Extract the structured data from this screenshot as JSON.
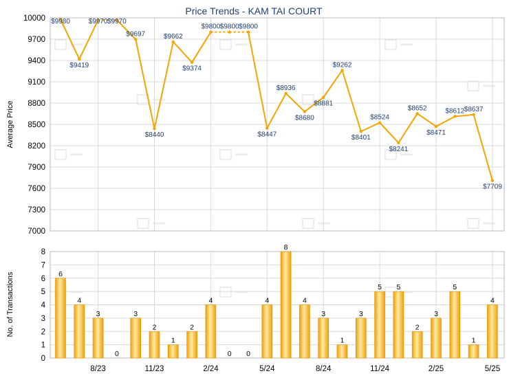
{
  "chart_data": [
    {
      "type": "line",
      "title": "Price Trends - KAM TAI COURT",
      "ylabel": "Average Price",
      "ylim": [
        7000,
        10000
      ],
      "yticks": [
        7000,
        7300,
        7600,
        7900,
        8200,
        8500,
        8800,
        9100,
        9400,
        9700,
        10000
      ],
      "grid": true,
      "line_color": "#f5a400",
      "points": [
        {
          "x": "2023-06",
          "y": 9980,
          "label": "$9980"
        },
        {
          "x": "2023-07",
          "y": 9419,
          "label": "$9419"
        },
        {
          "x": "2023-08",
          "y": 9970,
          "label": "$9970"
        },
        {
          "x": "2023-09",
          "y": 9970,
          "label": "$9970",
          "dashed_from_prev": true
        },
        {
          "x": "2023-10",
          "y": 9697,
          "label": "$9697"
        },
        {
          "x": "2023-11",
          "y": 8440,
          "label": "$8440"
        },
        {
          "x": "2023-12",
          "y": 9662,
          "label": "$9662"
        },
        {
          "x": "2024-01",
          "y": 9374,
          "label": "$9374"
        },
        {
          "x": "2024-02",
          "y": 9800,
          "label": "$9800"
        },
        {
          "x": "2024-03",
          "y": 9800,
          "label": "$9800",
          "dashed_from_prev": true
        },
        {
          "x": "2024-04",
          "y": 9800,
          "label": "$9800",
          "dashed_from_prev": true
        },
        {
          "x": "2024-05",
          "y": 8447,
          "label": "$8447"
        },
        {
          "x": "2024-06",
          "y": 8936,
          "label": "$8936"
        },
        {
          "x": "2024-07",
          "y": 8680,
          "label": "$8680"
        },
        {
          "x": "2024-08",
          "y": 8881,
          "label": "$8881"
        },
        {
          "x": "2024-09",
          "y": 9262,
          "label": "$9262"
        },
        {
          "x": "2024-10",
          "y": 8401,
          "label": "$8401"
        },
        {
          "x": "2024-11",
          "y": 8524,
          "label": "$8524"
        },
        {
          "x": "2024-12",
          "y": 8241,
          "label": "$8241"
        },
        {
          "x": "2025-01",
          "y": 8652,
          "label": "$8652"
        },
        {
          "x": "2025-02",
          "y": 8471,
          "label": "$8471"
        },
        {
          "x": "2025-03",
          "y": 8612,
          "label": "$8612"
        },
        {
          "x": "2025-04",
          "y": 8637,
          "label": "$8637"
        },
        {
          "x": "2025-05",
          "y": 7709,
          "label": "$7709"
        }
      ]
    },
    {
      "type": "bar",
      "ylabel": "No. of Transactions",
      "ylim": [
        0,
        8
      ],
      "yticks": [
        0,
        1,
        2,
        3,
        4,
        5,
        6,
        7,
        8
      ],
      "grid": true,
      "bar_color": "#f5a400",
      "categories": [
        "2023-06",
        "2023-07",
        "2023-08",
        "2023-09",
        "2023-10",
        "2023-11",
        "2023-12",
        "2024-01",
        "2024-02",
        "2024-03",
        "2024-04",
        "2024-05",
        "2024-06",
        "2024-07",
        "2024-08",
        "2024-09",
        "2024-10",
        "2024-11",
        "2024-12",
        "2025-01",
        "2025-02",
        "2025-03",
        "2025-04",
        "2025-05"
      ],
      "values": [
        6,
        4,
        3,
        0,
        3,
        2,
        1,
        2,
        4,
        0,
        0,
        4,
        8,
        4,
        3,
        1,
        3,
        5,
        5,
        2,
        3,
        5,
        1,
        4
      ],
      "xtick_labels": [
        {
          "x": "2023-08",
          "label": "8/23"
        },
        {
          "x": "2023-11",
          "label": "11/23"
        },
        {
          "x": "2024-02",
          "label": "2/24"
        },
        {
          "x": "2024-05",
          "label": "5/24"
        },
        {
          "x": "2024-08",
          "label": "8/24"
        },
        {
          "x": "2024-11",
          "label": "11/24"
        },
        {
          "x": "2025-02",
          "label": "2/25"
        },
        {
          "x": "2025-05",
          "label": "5/25"
        }
      ]
    }
  ]
}
